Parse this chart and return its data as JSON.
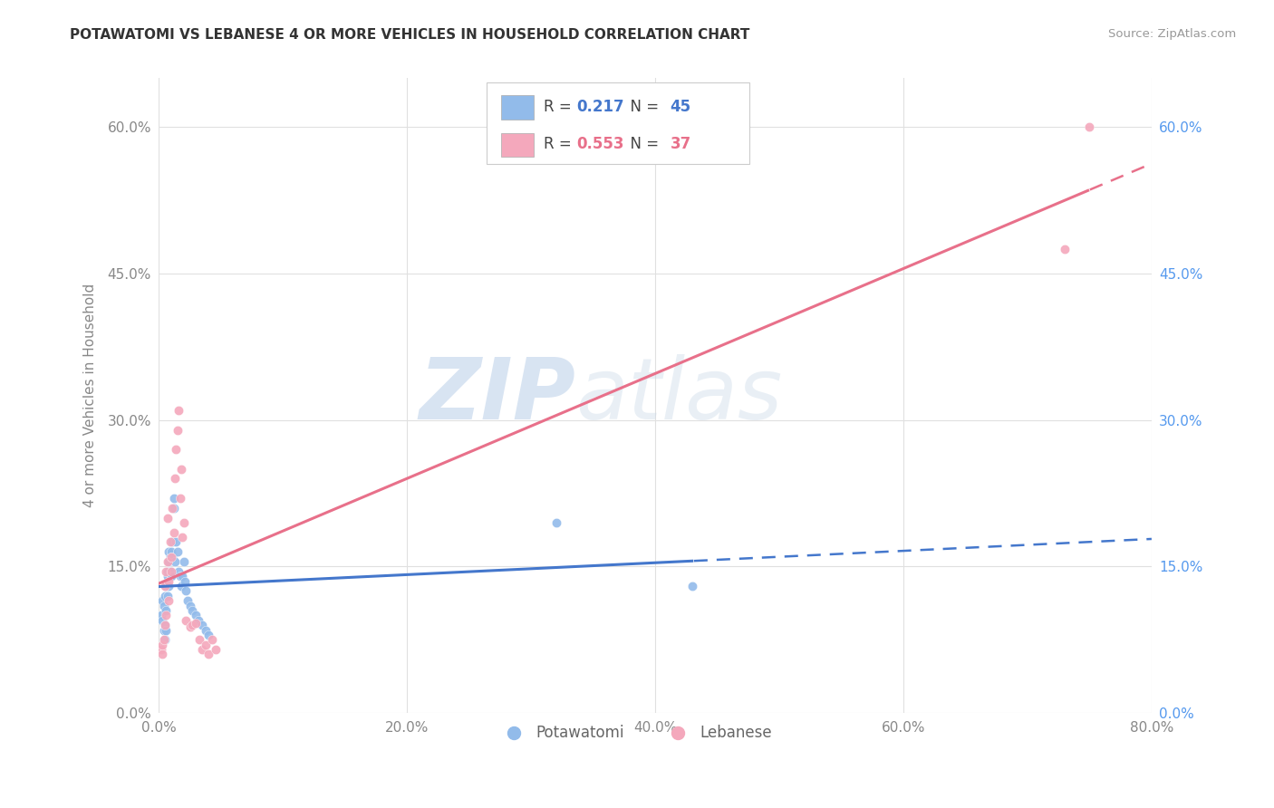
{
  "title": "POTAWATOMI VS LEBANESE 4 OR MORE VEHICLES IN HOUSEHOLD CORRELATION CHART",
  "source": "Source: ZipAtlas.com",
  "ylabel": "4 or more Vehicles in Household",
  "xlabel_ticks": [
    "0.0%",
    "20.0%",
    "40.0%",
    "60.0%",
    "80.0%"
  ],
  "xlabel_vals": [
    0.0,
    0.2,
    0.4,
    0.6,
    0.8
  ],
  "ylabel_ticks": [
    "0.0%",
    "15.0%",
    "30.0%",
    "45.0%",
    "60.0%"
  ],
  "ylabel_vals": [
    0.0,
    0.15,
    0.3,
    0.45,
    0.6
  ],
  "watermark_zip": "ZIP",
  "watermark_atlas": "atlas",
  "potawatomi_color": "#92BBEA",
  "lebanese_color": "#F4A8BC",
  "regression_blue": "#4477CC",
  "regression_pink": "#E8708A",
  "potawatomi_x": [
    0.002,
    0.003,
    0.003,
    0.004,
    0.004,
    0.005,
    0.005,
    0.005,
    0.006,
    0.006,
    0.006,
    0.007,
    0.007,
    0.007,
    0.008,
    0.008,
    0.008,
    0.009,
    0.009,
    0.01,
    0.01,
    0.011,
    0.011,
    0.012,
    0.012,
    0.013,
    0.014,
    0.015,
    0.016,
    0.017,
    0.018,
    0.019,
    0.02,
    0.021,
    0.022,
    0.023,
    0.025,
    0.027,
    0.03,
    0.032,
    0.035,
    0.038,
    0.04,
    0.32,
    0.43
  ],
  "potawatomi_y": [
    0.1,
    0.115,
    0.095,
    0.11,
    0.085,
    0.12,
    0.09,
    0.075,
    0.13,
    0.105,
    0.085,
    0.145,
    0.14,
    0.12,
    0.165,
    0.155,
    0.13,
    0.16,
    0.145,
    0.165,
    0.14,
    0.175,
    0.16,
    0.22,
    0.21,
    0.155,
    0.175,
    0.165,
    0.145,
    0.14,
    0.13,
    0.14,
    0.155,
    0.135,
    0.125,
    0.115,
    0.11,
    0.105,
    0.1,
    0.095,
    0.09,
    0.085,
    0.08,
    0.195,
    0.13
  ],
  "lebanese_x": [
    0.002,
    0.003,
    0.003,
    0.004,
    0.005,
    0.005,
    0.006,
    0.006,
    0.007,
    0.007,
    0.008,
    0.008,
    0.009,
    0.01,
    0.01,
    0.011,
    0.012,
    0.013,
    0.014,
    0.015,
    0.016,
    0.017,
    0.018,
    0.019,
    0.02,
    0.022,
    0.025,
    0.027,
    0.03,
    0.033,
    0.035,
    0.038,
    0.04,
    0.043,
    0.046,
    0.73,
    0.75
  ],
  "lebanese_y": [
    0.065,
    0.07,
    0.06,
    0.075,
    0.13,
    0.09,
    0.145,
    0.1,
    0.2,
    0.155,
    0.135,
    0.115,
    0.175,
    0.16,
    0.145,
    0.21,
    0.185,
    0.24,
    0.27,
    0.29,
    0.31,
    0.22,
    0.25,
    0.18,
    0.195,
    0.095,
    0.088,
    0.09,
    0.092,
    0.075,
    0.065,
    0.07,
    0.06,
    0.075,
    0.065,
    0.475,
    0.6
  ],
  "xmin": 0.0,
  "xmax": 0.8,
  "ymin": 0.0,
  "ymax": 0.65,
  "background": "#ffffff",
  "grid_color": "#e0e0e0",
  "r_potawatomi": "0.217",
  "n_potawatomi": "45",
  "r_lebanese": "0.553",
  "n_lebanese": "37"
}
